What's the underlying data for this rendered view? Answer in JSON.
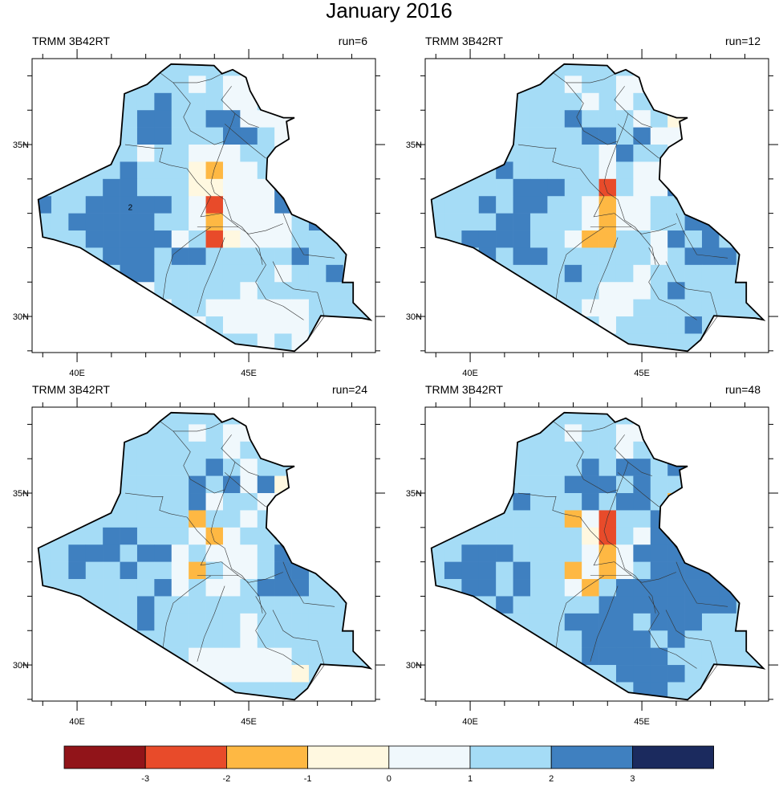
{
  "chart_data": {
    "type": "heatmap",
    "title": "January 2016",
    "xticks": [
      {
        "value": 40,
        "label": "40E"
      },
      {
        "value": 45,
        "label": "45E"
      }
    ],
    "yticks": [
      {
        "value": 30,
        "label": "30N"
      },
      {
        "value": 35,
        "label": "35N"
      }
    ],
    "lon_range": [
      38.69,
      48.69
    ],
    "lat_range": [
      28.95,
      37.5
    ],
    "grid": {
      "lon0": 38.75,
      "lat_top": 37.5,
      "res": 0.5
    },
    "colorbar": {
      "colors": [
        "#911419",
        "#e84b2a",
        "#feb843",
        "#fff8e0",
        "#f0f8fc",
        "#a5dcf6",
        "#3f80c0",
        "#1b2a5e"
      ],
      "labels": [
        "-3",
        "-2",
        "-1",
        "0",
        "1",
        "2",
        "3"
      ]
    },
    "panels": [
      {
        "left": "TRMM 3B42RT",
        "right": "run=6",
        "contour_label": "2",
        "rows": [
          "55555555555544355555",
          "55555555545442525555",
          "55555556555445555555",
          "55555566556644435555",
          "55555566555665444555",
          "55555545544455455555",
          "55555655532445444555",
          "55556655533444666555",
          "65566666541444666655",
          "55666665542444456555",
          "55566666451344455555",
          "55556665665555565555",
          "55555665555555455655",
          "55555545555545555555",
          "55555554554444445555",
          "55555555545444445555",
          "55555555555554545555"
        ]
      },
      {
        "left": "TRMM 3B42RT",
        "right": "run=12",
        "contour_label": "",
        "rows": [
          "55555555555544255555",
          "55555555455442555555",
          "55555555545455555555",
          "55555555655545345555",
          "55555555566564455555",
          "55555555554655445555",
          "55556555554544455555",
          "55555666551544665555",
          "55565665542445556555",
          "55556655542445566555",
          "55666655422554656555",
          "55565665555554566655",
          "55555555655545555555",
          "55555555554445655555",
          "55555555544455555555",
          "55555555554555565555",
          "55555555555555555555"
        ]
      },
      {
        "left": "TRMM 3B42RT",
        "right": "run=24",
        "contour_label": "",
        "rows": [
          "55555555555544255555",
          "55555555545445555555",
          "55555555555455555555",
          "55555555556545555555",
          "55555555565646325555",
          "55555555564554455555",
          "55555555525545455555",
          "55556655542455555555",
          "55666566454445655555",
          "55655655425445665555",
          "55555556454456665555",
          "55555565555555555555",
          "55555565555545555555",
          "55555555555545555555",
          "55555555544444455555",
          "55555555544444435555",
          "55555555555555555555"
        ]
      },
      {
        "left": "TRMM 3B42RT",
        "right": "run=48",
        "contour_label": "",
        "rows": [
          "55555555555544255555",
          "55555555455445555555",
          "55555555555455555555",
          "55555555565665655555",
          "55555555666565555555",
          "55555655565665235555",
          "55555555241556655555",
          "55555555531546655555",
          "55666555542466665555",
          "56665655242456666555",
          "55665655425666666655",
          "55556555556666666655",
          "55555555666656665555",
          "55555555566665655555",
          "55555555566666555555",
          "55555555555666655555",
          "55555555555566555555"
        ]
      }
    ],
    "outline": [
      [
        38.87,
        33.4
      ],
      [
        40.99,
        34.42
      ],
      [
        41.26,
        35.0
      ],
      [
        41.38,
        36.48
      ],
      [
        42.04,
        36.75
      ],
      [
        42.43,
        37.1
      ],
      [
        42.74,
        37.34
      ],
      [
        43.99,
        37.3
      ],
      [
        44.22,
        37.06
      ],
      [
        44.53,
        37.18
      ],
      [
        44.92,
        36.95
      ],
      [
        45.04,
        36.56
      ],
      [
        45.35,
        36.01
      ],
      [
        46.01,
        35.78
      ],
      [
        46.33,
        35.78
      ],
      [
        46.1,
        35.67
      ],
      [
        46.17,
        35.16
      ],
      [
        45.78,
        34.92
      ],
      [
        45.54,
        34.61
      ],
      [
        45.51,
        33.99
      ],
      [
        46.01,
        33.44
      ],
      [
        46.25,
        32.97
      ],
      [
        46.95,
        32.66
      ],
      [
        47.57,
        32.12
      ],
      [
        47.84,
        31.8
      ],
      [
        47.73,
        30.99
      ],
      [
        48.04,
        30.99
      ],
      [
        48.04,
        30.4
      ],
      [
        48.54,
        29.9
      ],
      [
        48.3,
        29.95
      ],
      [
        47.1,
        30.02
      ],
      [
        46.71,
        29.32
      ],
      [
        46.33,
        28.99
      ],
      [
        44.61,
        29.2
      ],
      [
        40.09,
        32.0
      ],
      [
        39.31,
        32.24
      ],
      [
        39.0,
        32.31
      ]
    ],
    "provinces": [
      [
        [
          41.4,
          35.0
        ],
        [
          42.2,
          34.9
        ],
        [
          42.5,
          34.9
        ],
        [
          42.4,
          34.5
        ],
        [
          42.7,
          34.4
        ],
        [
          43.2,
          34.3
        ]
      ],
      [
        [
          42.4,
          37.1
        ],
        [
          42.8,
          36.8
        ],
        [
          43.5,
          36.8
        ],
        [
          43.9,
          36.9
        ],
        [
          44.2,
          37.05
        ]
      ],
      [
        [
          42.8,
          36.8
        ],
        [
          43.3,
          36.2
        ],
        [
          43.1,
          35.8
        ],
        [
          43.3,
          35.4
        ],
        [
          44.0,
          35.0
        ],
        [
          44.3,
          35.1
        ],
        [
          44.5,
          35.6
        ],
        [
          44.6,
          35.9
        ],
        [
          44.2,
          36.3
        ],
        [
          44.5,
          36.7
        ]
      ],
      [
        [
          44.3,
          35.1
        ],
        [
          44.0,
          34.3
        ],
        [
          43.9,
          33.9
        ],
        [
          44.0,
          33.6
        ],
        [
          44.3,
          33.4
        ],
        [
          44.5,
          32.8
        ],
        [
          44.8,
          32.6
        ],
        [
          45.3,
          32.0
        ],
        [
          45.4,
          31.5
        ]
      ],
      [
        [
          44.6,
          35.9
        ],
        [
          45.0,
          35.6
        ],
        [
          45.3,
          35.5
        ]
      ],
      [
        [
          44.3,
          35.6
        ],
        [
          45.0,
          35.0
        ],
        [
          45.5,
          34.6
        ]
      ],
      [
        [
          43.2,
          34.3
        ],
        [
          43.5,
          33.9
        ],
        [
          43.9,
          33.5
        ],
        [
          43.6,
          32.9
        ],
        [
          44.2,
          33.0
        ],
        [
          44.7,
          32.6
        ]
      ],
      [
        [
          43.5,
          32.6
        ],
        [
          44.7,
          32.6
        ],
        [
          45.0,
          32.4
        ],
        [
          45.5,
          32.5
        ],
        [
          46.0,
          32.7
        ]
      ],
      [
        [
          43.9,
          32.6
        ],
        [
          43.3,
          32.2
        ],
        [
          42.8,
          31.8
        ],
        [
          42.6,
          31.2
        ],
        [
          42.5,
          30.5
        ]
      ],
      [
        [
          44.3,
          32.3
        ],
        [
          44.0,
          31.5
        ],
        [
          43.7,
          30.8
        ],
        [
          43.5,
          30.1
        ]
      ],
      [
        [
          45.2,
          32.0
        ],
        [
          45.5,
          31.5
        ],
        [
          45.2,
          31.0
        ],
        [
          45.5,
          30.5
        ],
        [
          46.0,
          30.3
        ],
        [
          46.6,
          29.9
        ]
      ],
      [
        [
          45.7,
          31.6
        ],
        [
          46.0,
          31.0
        ],
        [
          46.3,
          30.8
        ],
        [
          47.0,
          30.7
        ],
        [
          47.2,
          30.0
        ],
        [
          46.7,
          29.3
        ]
      ],
      [
        [
          46.0,
          33.0
        ],
        [
          46.2,
          32.5
        ],
        [
          46.6,
          31.8
        ],
        [
          47.5,
          31.7
        ]
      ],
      [
        [
          45.5,
          34.0
        ],
        [
          45.8,
          33.7
        ],
        [
          46.0,
          33.4
        ]
      ]
    ]
  }
}
